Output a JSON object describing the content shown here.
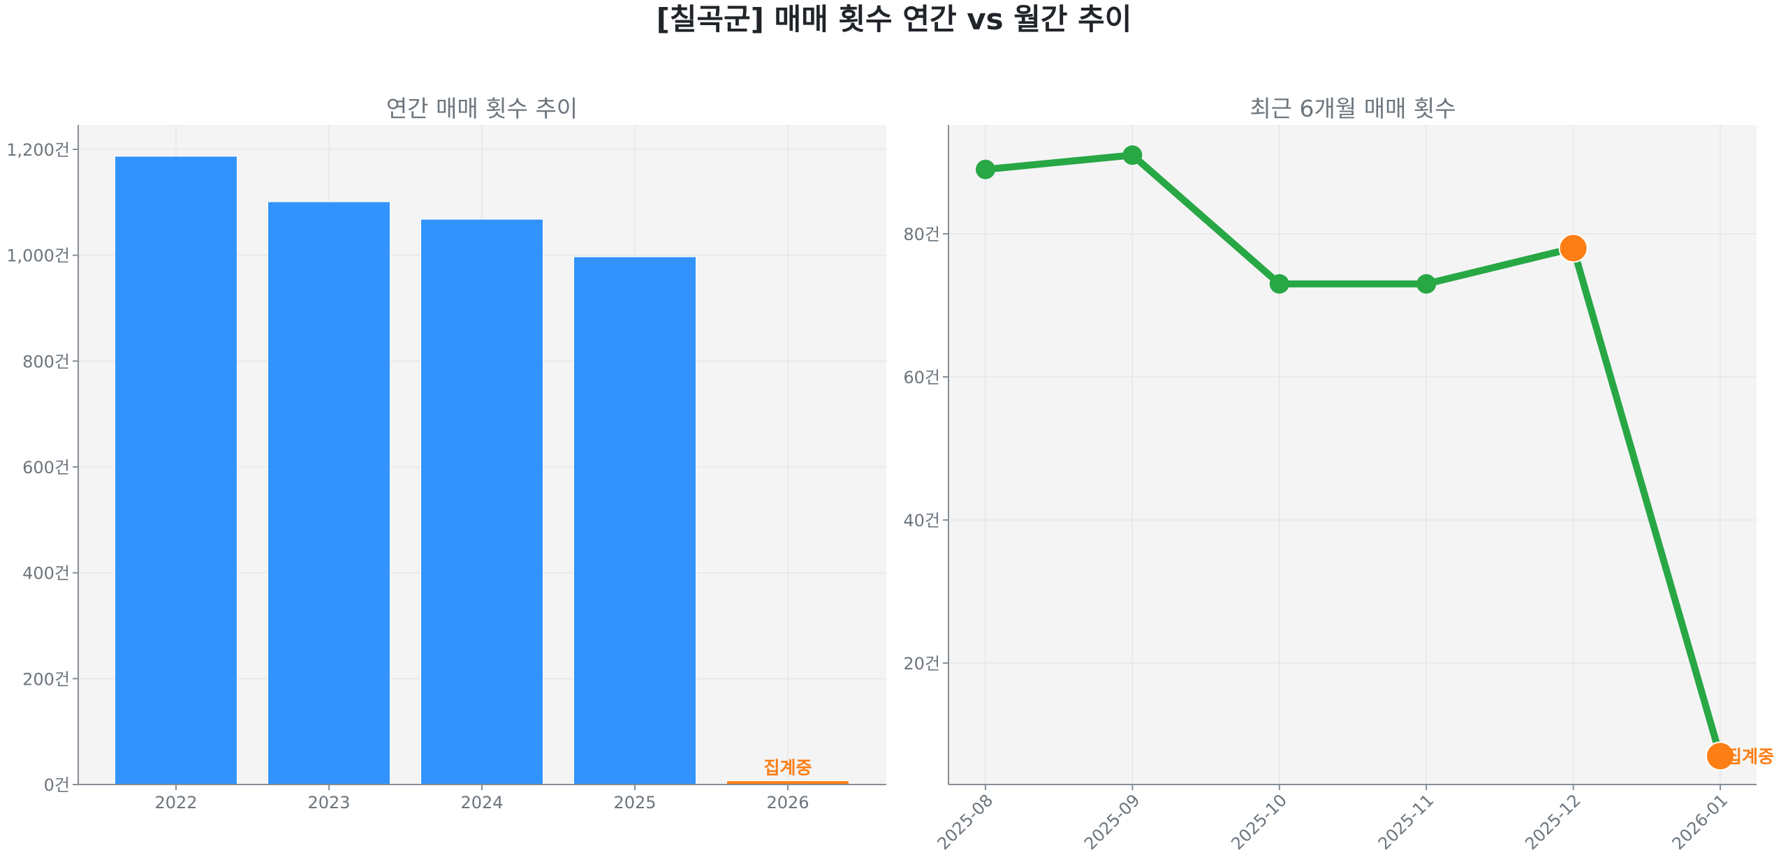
{
  "figure": {
    "title": "[칠곡군] 매매 횟수 연간 vs 월간 추이"
  },
  "colors": {
    "bar": "#3193fb",
    "bar_incomplete": "#fd7e14",
    "line": "#28a745",
    "marker": "#28a745",
    "marker_highlight": "#fd7e14",
    "plot_bg": "#f4f4f4",
    "grid": "#e6e6e6",
    "axis": "#868e96",
    "text_muted": "#6c757d",
    "title": "#212529"
  },
  "chart_data": [
    {
      "type": "bar",
      "title": "연간 매매 횟수 추이",
      "xlabel": "",
      "ylabel": "",
      "categories": [
        "2022",
        "2023",
        "2024",
        "2025",
        "2026"
      ],
      "values": [
        1187,
        1101,
        1068,
        997,
        7
      ],
      "ylim": [
        0,
        1250
      ],
      "yticks": [
        0,
        200,
        400,
        600,
        800,
        1000,
        1200
      ],
      "ytick_labels": [
        "0건",
        "200건",
        "400건",
        "600건",
        "800건",
        "1,000건",
        "1,200건"
      ],
      "grid": true,
      "annotations": [
        {
          "category": "2026",
          "text": "집계중"
        }
      ]
    },
    {
      "type": "line",
      "title": "최근 6개월 매매 횟수",
      "xlabel": "",
      "ylabel": "",
      "x": [
        "2025-08",
        "2025-09",
        "2025-10",
        "2025-11",
        "2025-12",
        "2026-01"
      ],
      "values": [
        89,
        91,
        73,
        73,
        78,
        7
      ],
      "highlighted_points": [
        "2025-12",
        "2026-01"
      ],
      "ylim": [
        2.5,
        95.5
      ],
      "yticks": [
        20,
        40,
        60,
        80
      ],
      "ytick_labels": [
        "20건",
        "40건",
        "60건",
        "80건"
      ],
      "grid": true,
      "annotations": [
        {
          "x": "2026-01",
          "text": "집계중"
        }
      ]
    }
  ]
}
